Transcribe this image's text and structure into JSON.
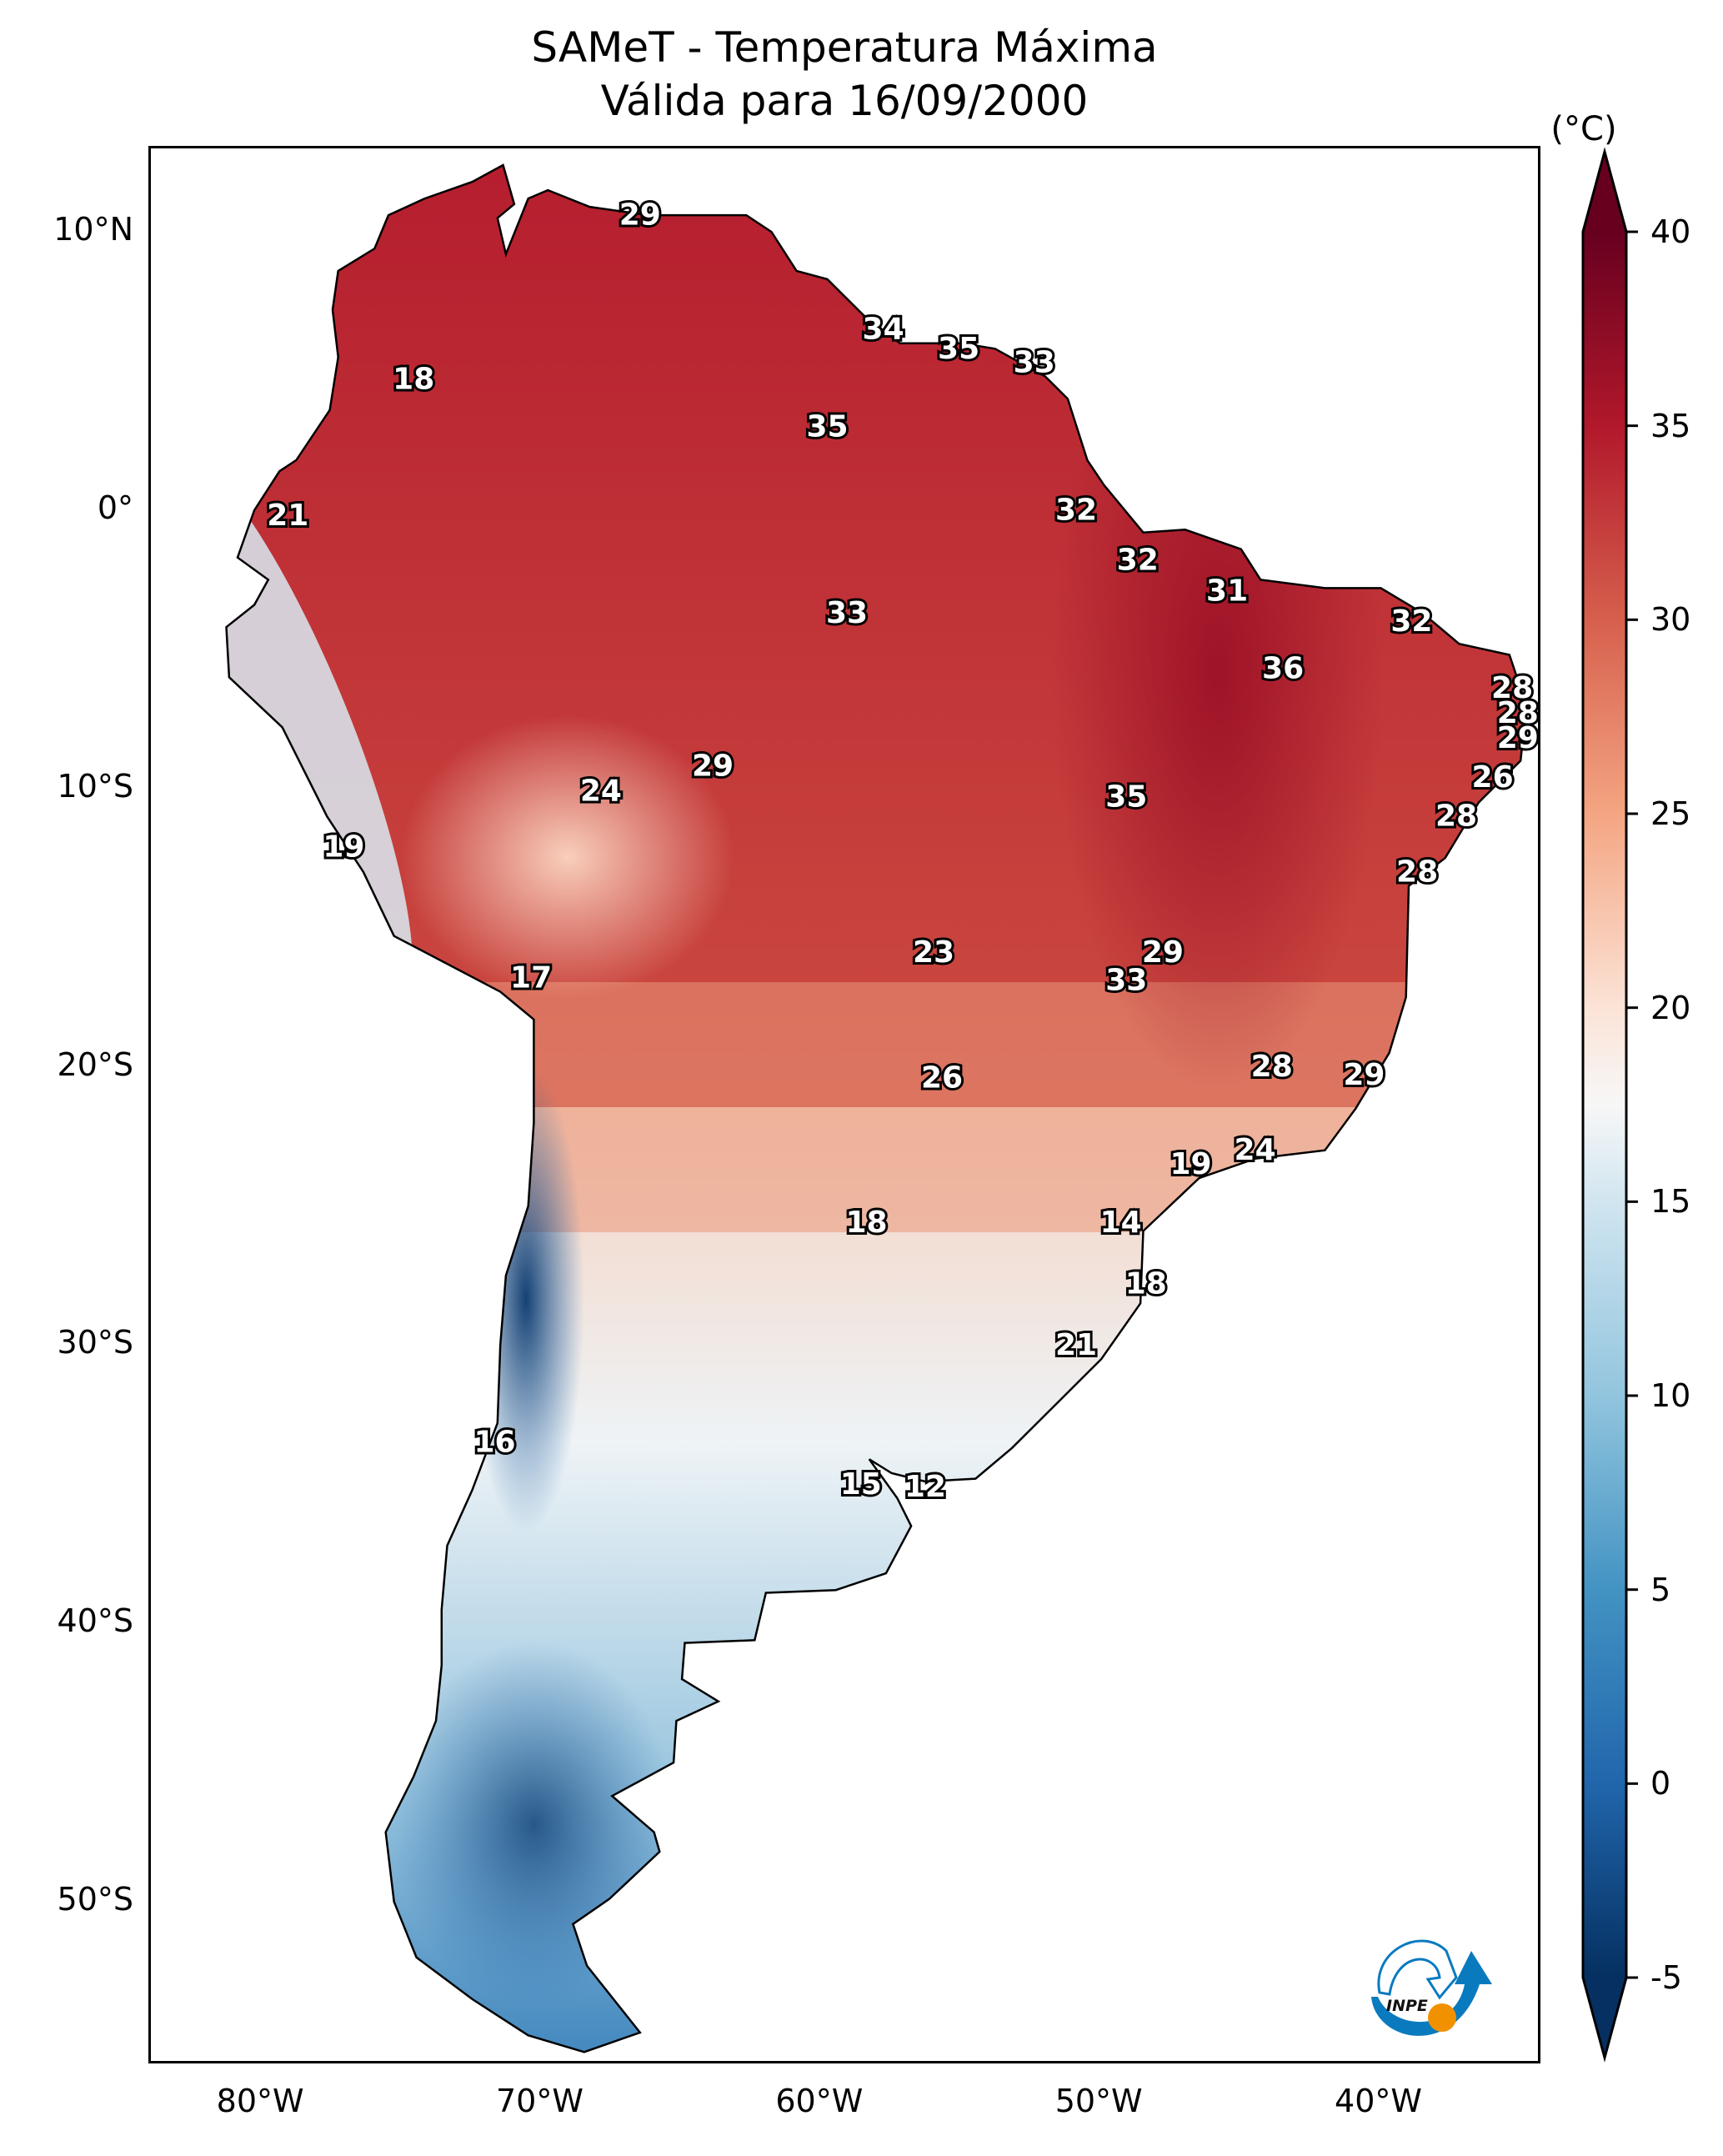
{
  "title": {
    "line1": "SAMeT - Temperatura Máxima",
    "line2": "Válida para 16/09/2000"
  },
  "colorbar": {
    "unit_label": "(°C)",
    "min": -5,
    "max": 40,
    "extend": "both",
    "ticks": [
      "40",
      "35",
      "30",
      "25",
      "20",
      "15",
      "10",
      "5",
      "0",
      "-5"
    ],
    "tick_values": [
      40,
      35,
      30,
      25,
      20,
      15,
      10,
      5,
      0,
      -5
    ],
    "colormap": "RdBu_r",
    "stops": [
      {
        "v": -5,
        "c": "#053061"
      },
      {
        "v": 0,
        "c": "#2166ac"
      },
      {
        "v": 5,
        "c": "#4393c3"
      },
      {
        "v": 10,
        "c": "#92c5de"
      },
      {
        "v": 15,
        "c": "#d1e5f0"
      },
      {
        "v": 17.5,
        "c": "#f7f7f7"
      },
      {
        "v": 20,
        "c": "#fbe3d6"
      },
      {
        "v": 25,
        "c": "#f4a582"
      },
      {
        "v": 30,
        "c": "#d6604d"
      },
      {
        "v": 35,
        "c": "#b2182b"
      },
      {
        "v": 40,
        "c": "#67001f"
      }
    ]
  },
  "axes": {
    "lat_ticks": [
      {
        "label": "10°N",
        "lat": 10
      },
      {
        "label": "0°",
        "lat": 0
      },
      {
        "label": "10°S",
        "lat": -10
      },
      {
        "label": "20°S",
        "lat": -20
      },
      {
        "label": "30°S",
        "lat": -30
      },
      {
        "label": "40°S",
        "lat": -40
      },
      {
        "label": "50°S",
        "lat": -50
      }
    ],
    "lon_ticks": [
      {
        "label": "80°W",
        "lon": -80
      },
      {
        "label": "70°W",
        "lon": -70
      },
      {
        "label": "60°W",
        "lon": -60
      },
      {
        "label": "50°W",
        "lon": -50
      },
      {
        "label": "40°W",
        "lon": -40
      }
    ],
    "lon_range": [
      -84.0,
      -34.2
    ],
    "lat_range": [
      -55.9,
      13.0
    ]
  },
  "station_labels": [
    {
      "value": "29",
      "lon": -66.5,
      "lat": 10.6
    },
    {
      "value": "18",
      "lon": -74.6,
      "lat": 4.7
    },
    {
      "value": "34",
      "lon": -57.8,
      "lat": 6.5
    },
    {
      "value": "35",
      "lon": -55.1,
      "lat": 5.8
    },
    {
      "value": "33",
      "lon": -52.4,
      "lat": 5.3
    },
    {
      "value": "35",
      "lon": -59.8,
      "lat": 3.0
    },
    {
      "value": "21",
      "lon": -79.1,
      "lat": -0.2
    },
    {
      "value": "32",
      "lon": -50.9,
      "lat": 0.0
    },
    {
      "value": "32",
      "lon": -48.7,
      "lat": -1.8
    },
    {
      "value": "31",
      "lon": -45.5,
      "lat": -2.9
    },
    {
      "value": "33",
      "lon": -59.1,
      "lat": -3.7
    },
    {
      "value": "32",
      "lon": -38.9,
      "lat": -4.0
    },
    {
      "value": "36",
      "lon": -43.5,
      "lat": -5.7
    },
    {
      "value": "28",
      "lon": -35.3,
      "lat": -6.4
    },
    {
      "value": "28",
      "lon": -35.1,
      "lat": -7.3
    },
    {
      "value": "29",
      "lon": -35.1,
      "lat": -8.2
    },
    {
      "value": "29",
      "lon": -63.9,
      "lat": -9.2
    },
    {
      "value": "26",
      "lon": -36.0,
      "lat": -9.6
    },
    {
      "value": "24",
      "lon": -67.9,
      "lat": -10.1
    },
    {
      "value": "35",
      "lon": -49.1,
      "lat": -10.3
    },
    {
      "value": "28",
      "lon": -37.3,
      "lat": -11.0
    },
    {
      "value": "19",
      "lon": -77.1,
      "lat": -12.1
    },
    {
      "value": "28",
      "lon": -38.7,
      "lat": -13.0
    },
    {
      "value": "23",
      "lon": -56.0,
      "lat": -15.9
    },
    {
      "value": "29",
      "lon": -47.8,
      "lat": -15.9
    },
    {
      "value": "17",
      "lon": -70.4,
      "lat": -16.8
    },
    {
      "value": "33",
      "lon": -49.1,
      "lat": -16.9
    },
    {
      "value": "28",
      "lon": -43.9,
      "lat": -20.0
    },
    {
      "value": "29",
      "lon": -40.6,
      "lat": -20.3
    },
    {
      "value": "26",
      "lon": -55.7,
      "lat": -20.4
    },
    {
      "value": "24",
      "lon": -44.5,
      "lat": -23.0
    },
    {
      "value": "19",
      "lon": -46.8,
      "lat": -23.5
    },
    {
      "value": "18",
      "lon": -58.4,
      "lat": -25.6
    },
    {
      "value": "14",
      "lon": -49.3,
      "lat": -25.6
    },
    {
      "value": "18",
      "lon": -48.4,
      "lat": -27.8
    },
    {
      "value": "21",
      "lon": -50.9,
      "lat": -30.0
    },
    {
      "value": "16",
      "lon": -71.7,
      "lat": -33.5
    },
    {
      "value": "15",
      "lon": -58.6,
      "lat": -35.0
    },
    {
      "value": "12",
      "lon": -56.3,
      "lat": -35.1
    }
  ],
  "logo": {
    "text": "INPE",
    "colors": {
      "blue": "#0a7abf",
      "orange": "#f29100"
    }
  }
}
